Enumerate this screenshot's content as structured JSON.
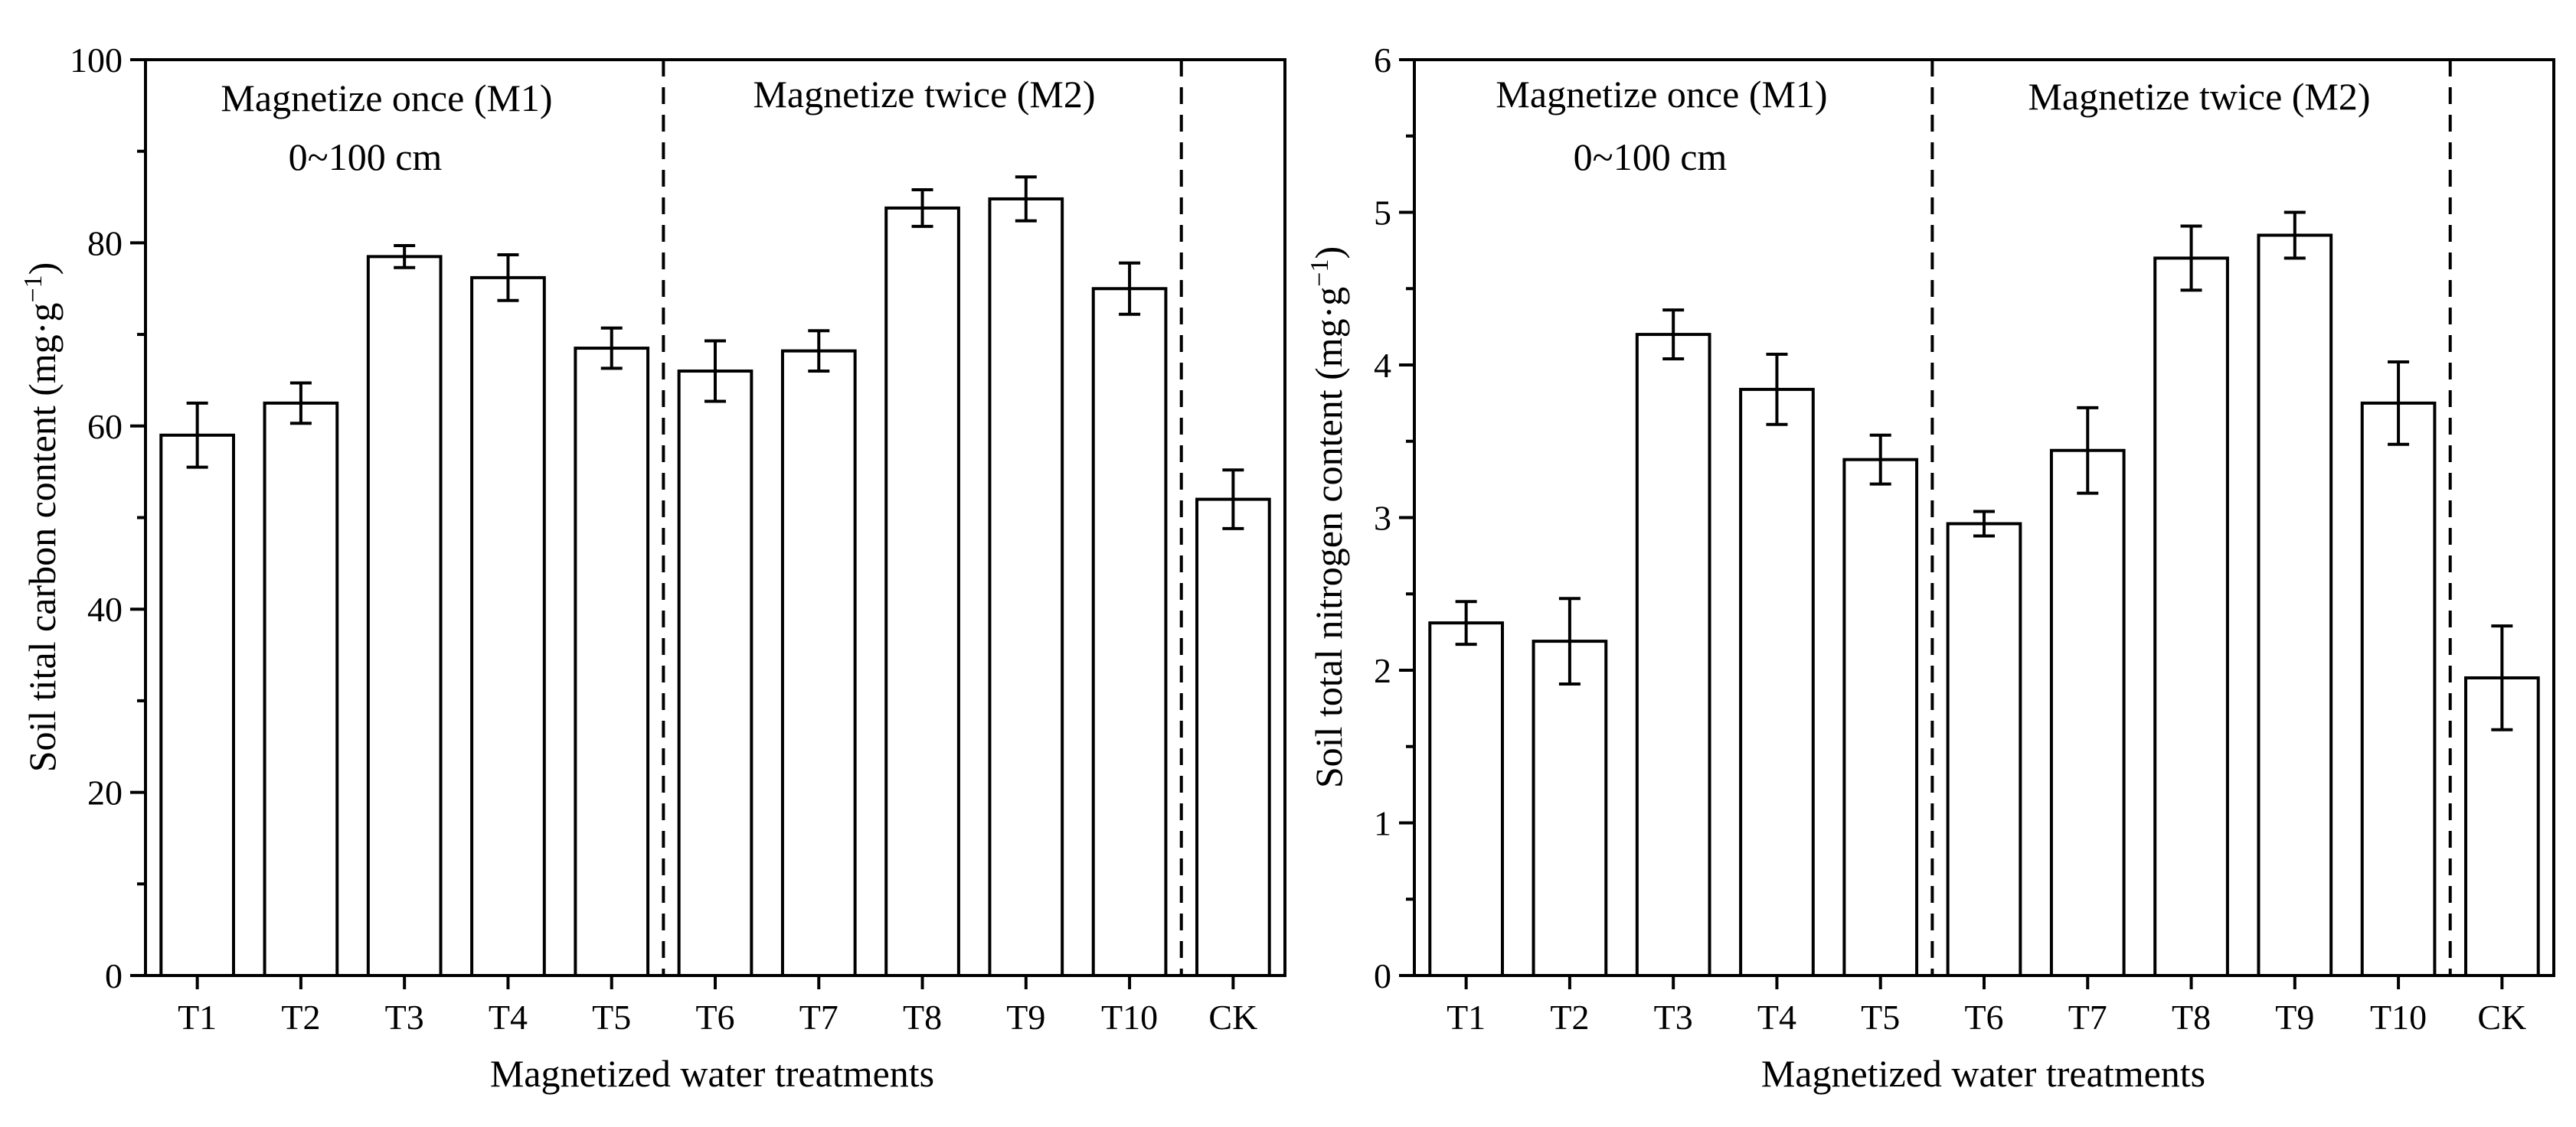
{
  "chart_data": [
    {
      "type": "bar",
      "title": "",
      "xlabel": "Magnetized water treatments",
      "ylabel": "Soil tital carbon content (mg·g",
      "ylabel_sup": "−1",
      "ylabel_close": ")",
      "ylim": [
        0,
        100
      ],
      "yticks": [
        "0",
        "20",
        "40",
        "60",
        "80",
        "100"
      ],
      "ytick_values": [
        0,
        20,
        40,
        60,
        80,
        100
      ],
      "categories": [
        "T1",
        "T2",
        "T3",
        "T4",
        "T5",
        "T6",
        "T7",
        "T8",
        "T9",
        "T10",
        "CK"
      ],
      "values": [
        59.0,
        62.5,
        78.5,
        76.2,
        68.5,
        66.0,
        68.2,
        83.8,
        84.8,
        75.0,
        52.0
      ],
      "errors": [
        3.5,
        2.2,
        1.2,
        2.5,
        2.2,
        3.3,
        2.2,
        2.0,
        2.4,
        2.8,
        3.2
      ],
      "groups": [
        {
          "label": "Magnetize once (M1)",
          "sublabel": "0~100 cm"
        },
        {
          "label": "Magnetize twice (M2)"
        }
      ],
      "dividers_after": [
        "T5",
        "T10"
      ],
      "grid": false
    },
    {
      "type": "bar",
      "title": "",
      "xlabel": "Magnetized water treatments",
      "ylabel": "Soil total nitrogen content (mg·g",
      "ylabel_sup": "−1",
      "ylabel_close": ")",
      "ylim": [
        0,
        6
      ],
      "yticks": [
        "0",
        "1",
        "2",
        "3",
        "4",
        "5",
        "6"
      ],
      "ytick_values": [
        0,
        1,
        2,
        3,
        4,
        5,
        6
      ],
      "categories": [
        "T1",
        "T2",
        "T3",
        "T4",
        "T5",
        "T6",
        "T7",
        "T8",
        "T9",
        "T10",
        "CK"
      ],
      "values": [
        2.31,
        2.19,
        4.2,
        3.84,
        3.38,
        2.96,
        3.44,
        4.7,
        4.85,
        3.75,
        1.95
      ],
      "errors": [
        0.14,
        0.28,
        0.16,
        0.23,
        0.16,
        0.08,
        0.28,
        0.21,
        0.15,
        0.27,
        0.34
      ],
      "groups": [
        {
          "label": "Magnetize once (M1)",
          "sublabel": "0~100 cm"
        },
        {
          "label": "Magnetize twice (M2)"
        }
      ],
      "dividers_after": [
        "T5",
        "T10"
      ],
      "grid": false
    }
  ]
}
